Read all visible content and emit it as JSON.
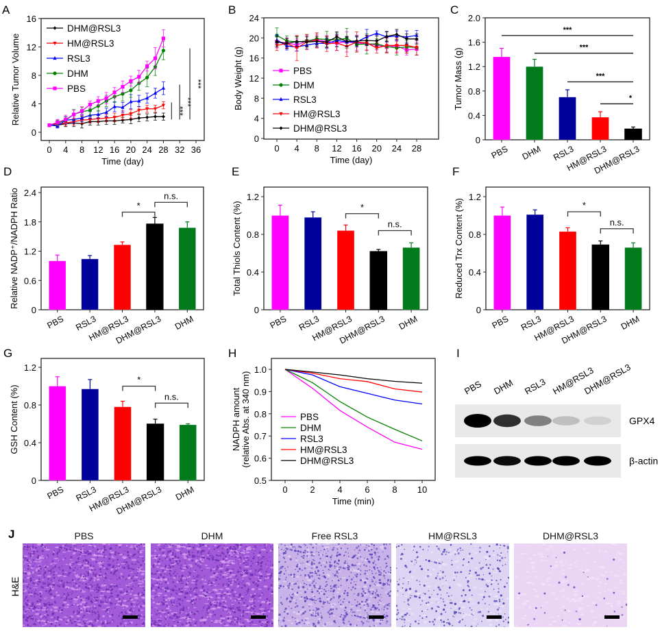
{
  "panel_letters": [
    "A",
    "B",
    "C",
    "D",
    "E",
    "F",
    "G",
    "H",
    "I",
    "J"
  ],
  "colors": {
    "PBS": "#ff00ff",
    "DHM": "#008000",
    "RSL3": "#0000ff",
    "HM@RSL3": "#ff0000",
    "DHM@RSL3": "#000000",
    "RSL3_bar": "#00009a",
    "DHM_bar": "#007a1a"
  },
  "chart_data": [
    {
      "id": "A",
      "type": "line",
      "title": "",
      "xlabel": "Time (day)",
      "ylabel": "Relative Tumor Volume",
      "xlim": [
        -2,
        37
      ],
      "ylim": [
        -1,
        16
      ],
      "xticks": [
        0,
        4,
        8,
        12,
        16,
        20,
        24,
        28,
        32,
        36
      ],
      "yticks": [
        0,
        4,
        8,
        12,
        16
      ],
      "legend_position": "top-left",
      "x": [
        0,
        2,
        4,
        6,
        8,
        10,
        12,
        14,
        16,
        18,
        20,
        22,
        24,
        26,
        28
      ],
      "series": [
        {
          "name": "DHM@RSL3",
          "marker": "diamond",
          "values": [
            1.0,
            1.0,
            1.2,
            1.3,
            1.2,
            1.5,
            1.5,
            1.6,
            1.6,
            1.7,
            1.8,
            2.0,
            2.1,
            2.2,
            2.2
          ],
          "errors": [
            0.2,
            0.3,
            0.4,
            0.5,
            0.6,
            0.5,
            0.5,
            0.5,
            0.5,
            0.4,
            0.6,
            0.5,
            0.5,
            0.5,
            0.5
          ]
        },
        {
          "name": "HM@RSL3",
          "marker": "triangle-down",
          "values": [
            1.0,
            1.2,
            1.3,
            1.5,
            1.7,
            1.8,
            1.9,
            2.0,
            2.1,
            2.4,
            2.6,
            3.1,
            3.3,
            3.3,
            3.8
          ],
          "errors": [
            0.2,
            0.4,
            0.4,
            0.5,
            0.5,
            0.5,
            0.5,
            0.5,
            0.6,
            0.6,
            0.6,
            0.5,
            0.5,
            0.5,
            0.5
          ]
        },
        {
          "name": "RSL3",
          "marker": "triangle-up",
          "values": [
            1.0,
            0.9,
            1.7,
            1.8,
            2.0,
            2.4,
            2.5,
            2.8,
            3.6,
            3.5,
            4.3,
            4.4,
            4.8,
            5.5,
            6.2
          ],
          "errors": [
            0.2,
            0.3,
            0.5,
            0.5,
            0.5,
            0.5,
            0.5,
            0.6,
            0.7,
            0.7,
            1.0,
            0.8,
            0.7,
            0.7,
            0.9
          ]
        },
        {
          "name": "DHM",
          "marker": "circle",
          "values": [
            1.0,
            1.3,
            1.7,
            2.5,
            2.9,
            3.1,
            3.7,
            4.4,
            5.0,
            5.4,
            5.9,
            6.9,
            7.7,
            9.2,
            11.5
          ],
          "errors": [
            0.2,
            0.4,
            0.5,
            0.7,
            0.6,
            0.7,
            0.7,
            0.8,
            0.8,
            1.0,
            1.0,
            1.0,
            1.3,
            1.2,
            1.3
          ]
        },
        {
          "name": "PBS",
          "marker": "square",
          "values": [
            1.0,
            1.4,
            1.8,
            2.5,
            3.0,
            3.9,
            4.4,
            4.8,
            5.6,
            6.4,
            7.2,
            7.8,
            9.3,
            10.4,
            13.2
          ],
          "errors": [
            0.2,
            0.4,
            0.6,
            0.6,
            0.6,
            0.5,
            0.6,
            0.8,
            0.7,
            0.8,
            0.7,
            0.9,
            0.7,
            1.5,
            1.2
          ]
        }
      ],
      "significance": [
        {
          "label": "***",
          "x": 30,
          "y_range": [
            1.8,
            4.2
          ]
        },
        {
          "label": "***",
          "x": 32,
          "y_range": [
            1.8,
            6.7
          ]
        },
        {
          "label": "***",
          "x": 34.5,
          "y_range": [
            1.8,
            11.8
          ]
        }
      ]
    },
    {
      "id": "B",
      "type": "line",
      "title": "",
      "xlabel": "Time (day)",
      "ylabel": "Body Weight (g)",
      "xlim": [
        -2,
        30
      ],
      "ylim": [
        0,
        24
      ],
      "xticks": [
        0,
        4,
        8,
        12,
        16,
        20,
        24,
        28
      ],
      "yticks": [
        0,
        4,
        8,
        12,
        16,
        20,
        24
      ],
      "legend_position": "left",
      "x": [
        0,
        2,
        4,
        6,
        8,
        10,
        12,
        14,
        16,
        18,
        20,
        22,
        24,
        26,
        28
      ],
      "series": [
        {
          "name": "PBS",
          "marker": "square",
          "values": [
            19.2,
            19.0,
            18.6,
            19.4,
            19.6,
            19.3,
            19.0,
            19.2,
            19.0,
            18.8,
            18.6,
            18.2,
            18.4,
            17.6,
            17.8
          ],
          "errors": [
            1.2,
            1.0,
            1.2,
            1.0,
            1.0,
            1.2,
            1.5,
            2.0,
            1.5,
            1.2,
            1.0,
            1.0,
            1.2,
            1.0,
            1.2
          ]
        },
        {
          "name": "DHM",
          "marker": "circle",
          "values": [
            20.5,
            19.4,
            19.2,
            19.4,
            19.8,
            19.7,
            19.6,
            19.9,
            18.7,
            18.8,
            18.8,
            18.3,
            18.0,
            18.2,
            18.1
          ],
          "errors": [
            1.5,
            1.0,
            1.0,
            1.2,
            1.2,
            1.6,
            1.4,
            2.0,
            1.5,
            2.0,
            1.0,
            1.2,
            1.4,
            1.2,
            1.5
          ]
        },
        {
          "name": "RSL3",
          "marker": "triangle-up",
          "values": [
            19.6,
            18.4,
            18.2,
            18.6,
            18.9,
            18.9,
            19.5,
            19.2,
            19.2,
            20.2,
            20.9,
            20.2,
            20.4,
            20.2,
            20.5
          ],
          "errors": [
            1.0,
            0.8,
            0.8,
            0.8,
            0.8,
            1.0,
            1.2,
            1.0,
            1.0,
            1.5,
            0.5,
            1.0,
            1.0,
            1.2,
            1.0
          ]
        },
        {
          "name": "HM@RSL3",
          "marker": "triangle-down",
          "values": [
            18.5,
            18.9,
            18.0,
            19.2,
            19.5,
            18.8,
            19.0,
            18.3,
            19.2,
            19.0,
            18.0,
            18.5,
            18.5,
            18.5,
            18.1
          ],
          "errors": [
            1.0,
            1.0,
            2.5,
            1.5,
            1.5,
            1.5,
            1.5,
            2.0,
            2.0,
            1.5,
            1.0,
            1.5,
            1.5,
            1.5,
            1.5
          ]
        },
        {
          "name": "DHM@RSL3",
          "marker": "diamond",
          "values": [
            19.2,
            18.9,
            19.3,
            19.2,
            19.3,
            19.2,
            20.2,
            19.3,
            19.4,
            19.5,
            19.4,
            20.3,
            20.7,
            19.8,
            19.8
          ],
          "errors": [
            1.0,
            1.0,
            1.0,
            1.0,
            1.0,
            1.0,
            1.0,
            1.0,
            1.0,
            1.0,
            1.0,
            1.0,
            1.0,
            1.0,
            1.0
          ]
        }
      ]
    },
    {
      "id": "C",
      "type": "bar",
      "title": "",
      "xlabel": "",
      "ylabel": "Tumor Mass (g)",
      "ylim": [
        0,
        2.0
      ],
      "yticks": [
        "0",
        "0.4",
        "0.8",
        "1.2",
        "1.6",
        "2.0"
      ],
      "categories": [
        "PBS",
        "DHM",
        "RSL3",
        "HM@RSL3",
        "DHM@RSL3"
      ],
      "values": [
        1.36,
        1.2,
        0.7,
        0.37,
        0.18
      ],
      "errors": [
        0.14,
        0.12,
        0.12,
        0.09,
        0.03
      ],
      "bar_colors": [
        "#ff00ff",
        "#007a1a",
        "#00009a",
        "#ff0000",
        "#000000"
      ],
      "significance": [
        {
          "label": "***",
          "from": 0,
          "to": 4,
          "y": 1.71
        },
        {
          "label": "***",
          "from": 1,
          "to": 4,
          "y": 1.42
        },
        {
          "label": "***",
          "from": 2,
          "to": 4,
          "y": 0.95
        },
        {
          "label": "*",
          "from": 3,
          "to": 4,
          "y": 0.59
        }
      ]
    },
    {
      "id": "D",
      "type": "bar",
      "title": "",
      "xlabel": "",
      "ylabel": "Relative NADP⁺/NADPH Ratio",
      "ylim": [
        0,
        2.5
      ],
      "yticks": [
        "0",
        "0.6",
        "1.2",
        "1.8",
        "2.4"
      ],
      "categories": [
        "PBS",
        "RSL3",
        "HM@RSL3",
        "DHM@RSL3",
        "DHM"
      ],
      "values": [
        1.0,
        1.04,
        1.33,
        1.76,
        1.68
      ],
      "errors": [
        0.12,
        0.07,
        0.06,
        0.13,
        0.12
      ],
      "bar_colors": [
        "#ff00ff",
        "#00009a",
        "#ff0000",
        "#000000",
        "#007a1a"
      ],
      "significance": [
        {
          "label": "*",
          "from": 2,
          "to": 3,
          "y": 2.0
        },
        {
          "label": "n.s.",
          "from": 3,
          "to": 4,
          "y": 2.2
        }
      ]
    },
    {
      "id": "E",
      "type": "bar",
      "title": "",
      "xlabel": "",
      "ylabel": "Total Thiols Content (%)",
      "ylim": [
        0,
        1.25
      ],
      "yticks": [
        "0",
        "0.4",
        "0.8",
        "1.2"
      ],
      "categories": [
        "PBS",
        "RSL3",
        "HM@RSL3",
        "DHM@RSL3",
        "DHM"
      ],
      "values": [
        1.0,
        0.98,
        0.84,
        0.62,
        0.66
      ],
      "errors": [
        0.11,
        0.06,
        0.06,
        0.02,
        0.05
      ],
      "bar_colors": [
        "#ff00ff",
        "#00009a",
        "#ff0000",
        "#000000",
        "#007a1a"
      ],
      "significance": [
        {
          "label": "*",
          "from": 2,
          "to": 3,
          "y": 1.02
        },
        {
          "label": "n.s.",
          "from": 3,
          "to": 4,
          "y": 0.84
        }
      ]
    },
    {
      "id": "F",
      "type": "bar",
      "title": "",
      "xlabel": "",
      "ylabel": "Reduced Trx Content (%)",
      "ylim": [
        0,
        1.25
      ],
      "yticks": [
        "0",
        "0.4",
        "0.8",
        "1.2"
      ],
      "categories": [
        "PBS",
        "RSL3",
        "HM@RSL3",
        "DHM@RSL3",
        "DHM"
      ],
      "values": [
        1.0,
        1.01,
        0.83,
        0.69,
        0.66
      ],
      "errors": [
        0.09,
        0.05,
        0.04,
        0.04,
        0.05
      ],
      "bar_colors": [
        "#ff00ff",
        "#00009a",
        "#ff0000",
        "#000000",
        "#007a1a"
      ],
      "significance": [
        {
          "label": "*",
          "from": 2,
          "to": 3,
          "y": 1.04
        },
        {
          "label": "n.s.",
          "from": 3,
          "to": 4,
          "y": 0.86
        }
      ]
    },
    {
      "id": "G",
      "type": "bar",
      "title": "",
      "xlabel": "",
      "ylabel": "GSH Content (%)",
      "ylim": [
        0,
        1.25
      ],
      "yticks": [
        "0",
        "0.4",
        "0.8",
        "1.2"
      ],
      "categories": [
        "PBS",
        "RSL3",
        "HM@RSL3",
        "DHM@RSL3",
        "DHM"
      ],
      "values": [
        1.0,
        0.97,
        0.78,
        0.6,
        0.59
      ],
      "errors": [
        0.1,
        0.1,
        0.06,
        0.05,
        0.01
      ],
      "bar_colors": [
        "#ff00ff",
        "#00009a",
        "#ff0000",
        "#000000",
        "#007a1a"
      ],
      "significance": [
        {
          "label": "*",
          "from": 2,
          "to": 3,
          "y": 1.0
        },
        {
          "label": "n.s.",
          "from": 3,
          "to": 4,
          "y": 0.82
        }
      ]
    },
    {
      "id": "H",
      "type": "line",
      "title": "",
      "xlabel": "Time (min)",
      "ylabel": "NADPH amount",
      "ylabel2": "(relative Abs. at 340 nm)",
      "xlim": [
        -1,
        11
      ],
      "ylim": [
        0.5,
        1.05
      ],
      "xticks": [
        0,
        2,
        4,
        6,
        8,
        10
      ],
      "yticks": [
        "0.5",
        "0.6",
        "0.7",
        "0.8",
        "0.9",
        "1.0"
      ],
      "legend_position": "bottom-left",
      "x": [
        0,
        2,
        4,
        6,
        8,
        10
      ],
      "series": [
        {
          "name": "PBS",
          "values": [
            1.0,
            0.915,
            0.815,
            0.74,
            0.672,
            0.64
          ]
        },
        {
          "name": "DHM",
          "values": [
            1.0,
            0.94,
            0.855,
            0.785,
            0.73,
            0.678
          ]
        },
        {
          "name": "RSL3",
          "values": [
            1.0,
            0.975,
            0.922,
            0.892,
            0.862,
            0.844
          ]
        },
        {
          "name": "HM@RSL3",
          "values": [
            1.0,
            0.983,
            0.958,
            0.945,
            0.912,
            0.898
          ]
        },
        {
          "name": "DHM@RSL3",
          "values": [
            1.0,
            0.988,
            0.975,
            0.958,
            0.946,
            0.938
          ]
        }
      ]
    }
  ],
  "western_blot": {
    "lanes": [
      "PBS",
      "DHM",
      "RSL3",
      "HM@RSL3",
      "DHM@RSL3"
    ],
    "rows": [
      {
        "label": "GPX4",
        "intensity": [
          1.0,
          0.8,
          0.45,
          0.18,
          0.1
        ]
      },
      {
        "label": "β-actin",
        "intensity": [
          1.0,
          0.95,
          1.0,
          1.0,
          1.0
        ]
      }
    ]
  },
  "histology": {
    "row_label": "H&E",
    "panels": [
      {
        "title": "PBS",
        "stain": "dense"
      },
      {
        "title": "DHM",
        "stain": "dense"
      },
      {
        "title": "Free RSL3",
        "stain": "moderate"
      },
      {
        "title": "HM@RSL3",
        "stain": "sparse"
      },
      {
        "title": "DHM@RSL3",
        "stain": "faint"
      }
    ]
  }
}
